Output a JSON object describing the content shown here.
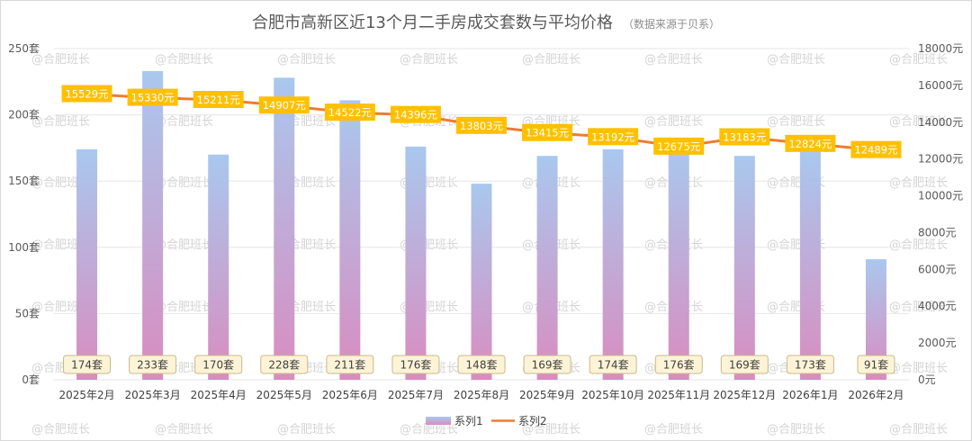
{
  "chart_data": {
    "type": "bar+line",
    "title": "合肥市高新区近13个月二手房成交套数与平均价格",
    "subtitle": "（数据来源于贝系）",
    "categories": [
      "2025年2月",
      "2025年3月",
      "2025年4月",
      "2025年5月",
      "2025年6月",
      "2025年7月",
      "2025年8月",
      "2025年9月",
      "2025年10月",
      "2025年11月",
      "2025年12月",
      "2026年1月",
      "2026年2月"
    ],
    "series": [
      {
        "name": "系列1",
        "axis": "left",
        "kind": "bar",
        "values": [
          174,
          233,
          170,
          228,
          211,
          176,
          148,
          169,
          174,
          176,
          169,
          173,
          91
        ],
        "labels": [
          "174套",
          "233套",
          "170套",
          "228套",
          "211套",
          "176套",
          "148套",
          "169套",
          "174套",
          "176套",
          "169套",
          "173套",
          "91套"
        ]
      },
      {
        "name": "系列2",
        "axis": "right",
        "kind": "line",
        "values": [
          15529,
          15330,
          15211,
          14907,
          14522,
          14396,
          13803,
          13415,
          13192,
          12675,
          13183,
          12824,
          12489
        ],
        "labels": [
          "15529元",
          "15330元",
          "15211元",
          "14907元",
          "14522元",
          "14396元",
          "13803元",
          "13415元",
          "13192元",
          "12675元",
          "13183元",
          "12824元",
          "12489元"
        ]
      }
    ],
    "left_axis": {
      "ylim": [
        0,
        250
      ],
      "ticks": [
        0,
        50,
        100,
        150,
        200,
        250
      ],
      "tick_labels": [
        "0套",
        "50套",
        "100套",
        "150套",
        "200套",
        "250套"
      ]
    },
    "right_axis": {
      "ylim": [
        0,
        18000
      ],
      "ticks": [
        0,
        2000,
        4000,
        6000,
        8000,
        10000,
        12000,
        14000,
        16000,
        18000
      ],
      "tick_labels": [
        "0元",
        "2000元",
        "4000元",
        "6000元",
        "8000元",
        "10000元",
        "12000元",
        "14000元",
        "16000元",
        "18000元"
      ]
    },
    "grid": true,
    "legend": "bottom-center",
    "colors": {
      "bar_top": "#a9c8ee",
      "bar_bottom": "#d98cbf",
      "line": "#ed7d31",
      "label_fill": "#ffc000",
      "count_label_fill": "#fdf3d6"
    }
  },
  "watermark": "@合肥班长"
}
